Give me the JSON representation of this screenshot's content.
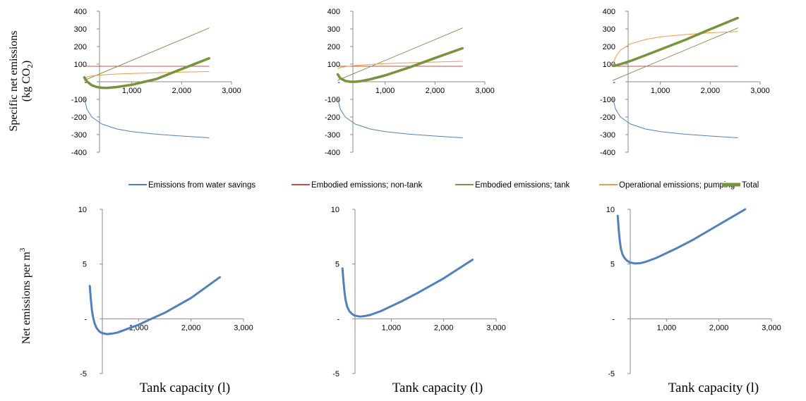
{
  "figure": {
    "top_ylabel_line1": "Specific net emissions",
    "top_ylabel_line2": "(kg CO",
    "top_ylabel_sub": "2",
    "top_ylabel_close": ")",
    "bottom_ylabel": "Net emissions per m",
    "bottom_ylabel_sup": "3",
    "xlabel": "Tank capacity (l)"
  },
  "colors": {
    "water_savings": "#4f81bd",
    "non_tank": "#c0504d",
    "tank": "#948a54",
    "pumping": "#f79646",
    "total": "#77933c",
    "net": "#4f81bd",
    "axis": "#888888"
  },
  "legend": [
    {
      "label": "Emissions from water savings",
      "color": "#4f81bd",
      "width": 2
    },
    {
      "label": "Embodied emissions; non-tank",
      "color": "#c0504d",
      "width": 2
    },
    {
      "label": "Embodied emissions; tank",
      "color": "#948a54",
      "width": 2
    },
    {
      "label": "Operational emissions; pumping",
      "color": "#f79646",
      "width": 2
    },
    {
      "label": "Total",
      "color": "#77933c",
      "width": 5
    }
  ],
  "chart_data": [
    {
      "type": "line",
      "row": "top",
      "panel": 1,
      "xlim": [
        0,
        3000
      ],
      "ylim": [
        -400,
        400
      ],
      "xticks": [
        "1,000",
        "2,000",
        "3,000"
      ],
      "yticks": [
        "400",
        "300",
        "200",
        "100",
        "-",
        "-100",
        "-200",
        "-300",
        "-400"
      ],
      "series": [
        {
          "name": "Emissions from water savings",
          "x": [
            50,
            100,
            200,
            400,
            700,
            1000,
            1500,
            2000,
            2550
          ],
          "y": [
            -95,
            -155,
            -200,
            -240,
            -268,
            -283,
            -298,
            -308,
            -318
          ]
        },
        {
          "name": "Embodied emissions; non-tank",
          "x": [
            50,
            2550
          ],
          "y": [
            88,
            88
          ]
        },
        {
          "name": "Embodied emissions; tank",
          "x": [
            50,
            2550
          ],
          "y": [
            8,
            305
          ]
        },
        {
          "name": "Operational emissions; pumping",
          "x": [
            50,
            100,
            200,
            400,
            700,
            1000,
            1500,
            2000,
            2550
          ],
          "y": [
            20,
            27,
            33,
            39,
            44,
            47,
            51,
            55,
            58
          ]
        },
        {
          "name": "Total",
          "x": [
            50,
            100,
            200,
            300,
            400,
            500,
            700,
            1000,
            1500,
            2000,
            2550
          ],
          "y": [
            25,
            2,
            -20,
            -30,
            -34,
            -35,
            -30,
            -17,
            16,
            72,
            133
          ]
        }
      ]
    },
    {
      "type": "line",
      "row": "top",
      "panel": 2,
      "xlim": [
        0,
        3000
      ],
      "ylim": [
        -400,
        400
      ],
      "xticks": [
        "1,000",
        "2,000",
        "3,000"
      ],
      "yticks": [
        "400",
        "300",
        "200",
        "100",
        "-",
        "-100",
        "-200",
        "-300",
        "-400"
      ],
      "series": [
        {
          "name": "Emissions from water savings",
          "x": [
            50,
            100,
            200,
            400,
            700,
            1000,
            1500,
            2000,
            2550
          ],
          "y": [
            -95,
            -155,
            -200,
            -240,
            -268,
            -283,
            -298,
            -308,
            -318
          ]
        },
        {
          "name": "Embodied emissions; non-tank",
          "x": [
            50,
            2550
          ],
          "y": [
            88,
            88
          ]
        },
        {
          "name": "Embodied emissions; tank",
          "x": [
            50,
            2550
          ],
          "y": [
            8,
            305
          ]
        },
        {
          "name": "Operational emissions; pumping",
          "x": [
            50,
            100,
            200,
            400,
            700,
            1000,
            1500,
            2000,
            2550
          ],
          "y": [
            75,
            80,
            86,
            92,
            98,
            103,
            108,
            112,
            116
          ]
        },
        {
          "name": "Total",
          "x": [
            50,
            100,
            200,
            300,
            400,
            500,
            700,
            1000,
            1500,
            2000,
            2550
          ],
          "y": [
            42,
            20,
            5,
            0,
            0,
            3,
            14,
            36,
            83,
            135,
            190
          ]
        }
      ]
    },
    {
      "type": "line",
      "row": "top",
      "panel": 3,
      "xlim": [
        0,
        3000
      ],
      "ylim": [
        -400,
        400
      ],
      "xticks": [
        "1,000",
        "2,000",
        "3,000"
      ],
      "yticks": [
        "400",
        "300",
        "200",
        "100",
        "-",
        "-100",
        "-200",
        "-300",
        "-400"
      ],
      "series": [
        {
          "name": "Emissions from water savings",
          "x": [
            50,
            100,
            200,
            400,
            700,
            1000,
            1500,
            2000,
            2550
          ],
          "y": [
            -95,
            -155,
            -200,
            -240,
            -268,
            -283,
            -298,
            -308,
            -318
          ]
        },
        {
          "name": "Embodied emissions; non-tank",
          "x": [
            50,
            2550
          ],
          "y": [
            88,
            88
          ]
        },
        {
          "name": "Embodied emissions; tank",
          "x": [
            50,
            2550
          ],
          "y": [
            8,
            305
          ]
        },
        {
          "name": "Operational emissions; pumping",
          "x": [
            50,
            100,
            200,
            400,
            700,
            1000,
            1500,
            2000,
            2550
          ],
          "y": [
            95,
            140,
            180,
            215,
            240,
            255,
            268,
            278,
            285
          ]
        },
        {
          "name": "Total",
          "x": [
            50,
            100,
            200,
            400,
            700,
            1000,
            1500,
            2000,
            2550
          ],
          "y": [
            90,
            92,
            100,
            118,
            150,
            183,
            238,
            298,
            362
          ]
        }
      ]
    },
    {
      "type": "line",
      "row": "bottom",
      "panel": 1,
      "xlim": [
        0,
        3000
      ],
      "ylim": [
        -5,
        10
      ],
      "xticks": [
        "1,000",
        "2,000",
        "3,000"
      ],
      "yticks": [
        "10",
        "5",
        "-",
        "-5"
      ],
      "series": [
        {
          "x": [
            70,
            90,
            110,
            130,
            160,
            200,
            250,
            300,
            400,
            500,
            600,
            800,
            1000,
            1200,
            1500,
            2000,
            2550
          ],
          "y": [
            3.0,
            1.8,
            0.8,
            0.2,
            -0.4,
            -0.85,
            -1.15,
            -1.3,
            -1.4,
            -1.35,
            -1.25,
            -0.9,
            -0.55,
            -0.1,
            0.55,
            1.9,
            3.8
          ]
        }
      ]
    },
    {
      "type": "line",
      "row": "bottom",
      "panel": 2,
      "xlim": [
        0,
        3000
      ],
      "ylim": [
        -5,
        10
      ],
      "xticks": [
        "1,000",
        "2,000",
        "3,000"
      ],
      "yticks": [
        "10",
        "5",
        "-",
        "-5"
      ],
      "series": [
        {
          "x": [
            70,
            90,
            110,
            130,
            160,
            200,
            250,
            300,
            400,
            500,
            600,
            800,
            1000,
            1200,
            1500,
            2000,
            2550
          ],
          "y": [
            4.6,
            3.4,
            2.4,
            1.7,
            1.1,
            0.7,
            0.45,
            0.3,
            0.2,
            0.25,
            0.35,
            0.7,
            1.15,
            1.6,
            2.35,
            3.7,
            5.4
          ]
        }
      ]
    },
    {
      "type": "line",
      "row": "bottom",
      "panel": 3,
      "xlim": [
        0,
        3000
      ],
      "ylim": [
        -5,
        10
      ],
      "xticks": [
        "1,000",
        "2,000",
        "3,000"
      ],
      "yticks": [
        "10",
        "5",
        "-",
        "-5"
      ],
      "series": [
        {
          "x": [
            70,
            90,
            110,
            130,
            160,
            200,
            250,
            300,
            400,
            500,
            600,
            800,
            1000,
            1200,
            1500,
            2000,
            2500
          ],
          "y": [
            9.4,
            8.1,
            7.1,
            6.4,
            5.9,
            5.55,
            5.3,
            5.15,
            5.05,
            5.08,
            5.2,
            5.55,
            6.0,
            6.45,
            7.2,
            8.6,
            10.0
          ]
        }
      ]
    }
  ]
}
